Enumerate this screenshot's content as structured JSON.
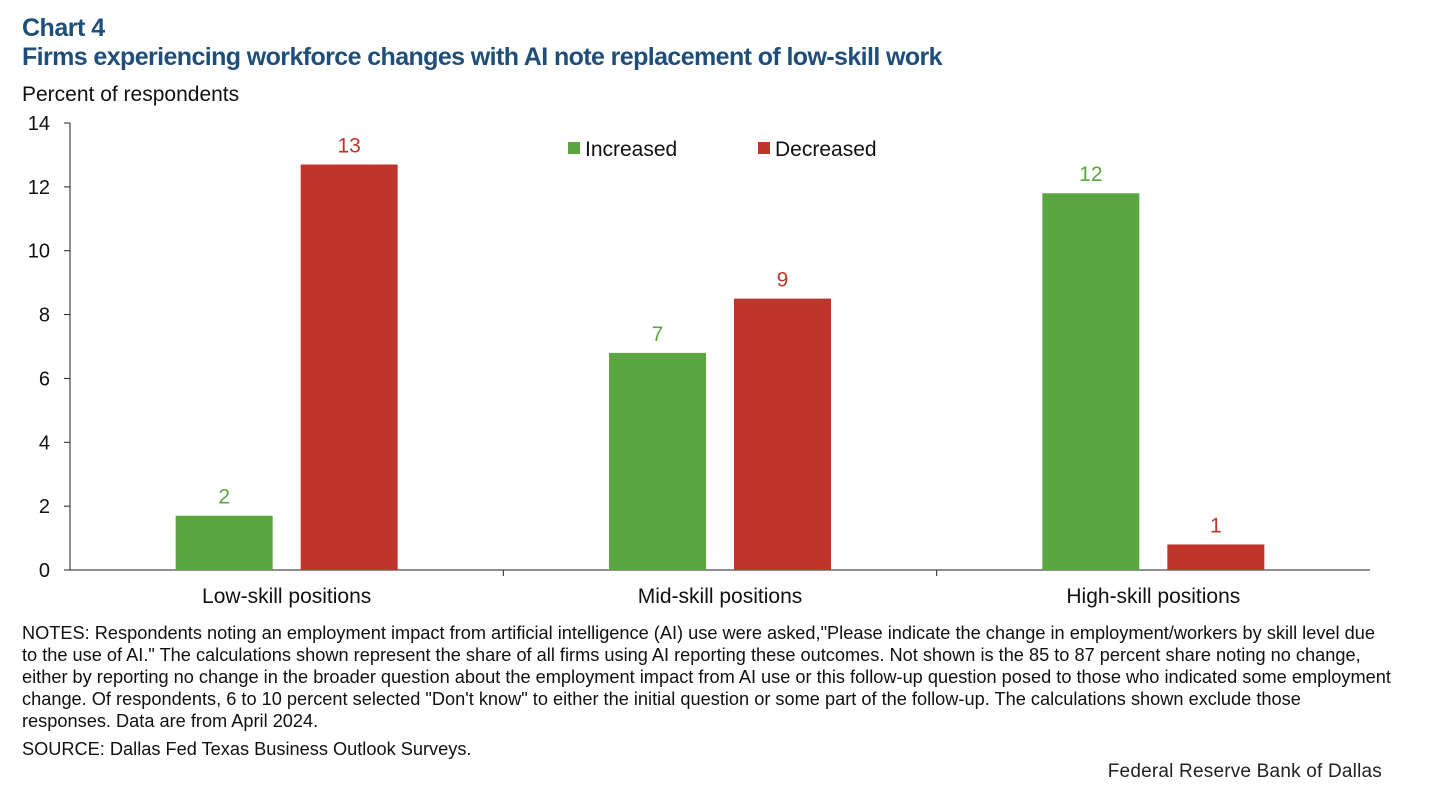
{
  "header": {
    "chart_number": "Chart 4",
    "title": "Firms experiencing workforce changes with AI note replacement of low-skill work"
  },
  "chart_data": {
    "type": "bar",
    "title": "Firms experiencing workforce changes with AI note replacement of low-skill work",
    "ylabel": "Percent of respondents",
    "xlabel": "",
    "ylim": [
      0,
      14
    ],
    "yticks": [
      0,
      2,
      4,
      6,
      8,
      10,
      12,
      14
    ],
    "categories": [
      "Low-skill positions",
      "Mid-skill positions",
      "High-skill positions"
    ],
    "series": [
      {
        "name": "Increased",
        "color": "#5aa640",
        "values": [
          1.7,
          6.8,
          11.8
        ],
        "labels": [
          "2",
          "7",
          "12"
        ]
      },
      {
        "name": "Decreased",
        "color": "#c0352b",
        "values": [
          12.7,
          8.5,
          0.8
        ],
        "labels": [
          "13",
          "9",
          "1"
        ]
      }
    ],
    "legend": "top-center",
    "grid": false
  },
  "notes": "NOTES: Respondents noting an employment impact from artificial intelligence (AI) use were asked,\"Please indicate the change in employment/workers by skill level due to the use of AI.\" The calculations shown represent the share of all firms using AI reporting these outcomes. Not shown is the 85 to 87 percent share noting no change, either by reporting no change in the broader question about the employment impact from AI use or this follow-up question posed to those who indicated some employment change. Of respondents, 6 to 10 percent selected \"Don't know\" to either the initial question or some part of the follow-up. The calculations shown exclude those responses. Data are from April 2024.",
  "source": "SOURCE: Dallas Fed Texas Business Outlook Surveys.",
  "credit": "Federal Reserve Bank of Dallas"
}
